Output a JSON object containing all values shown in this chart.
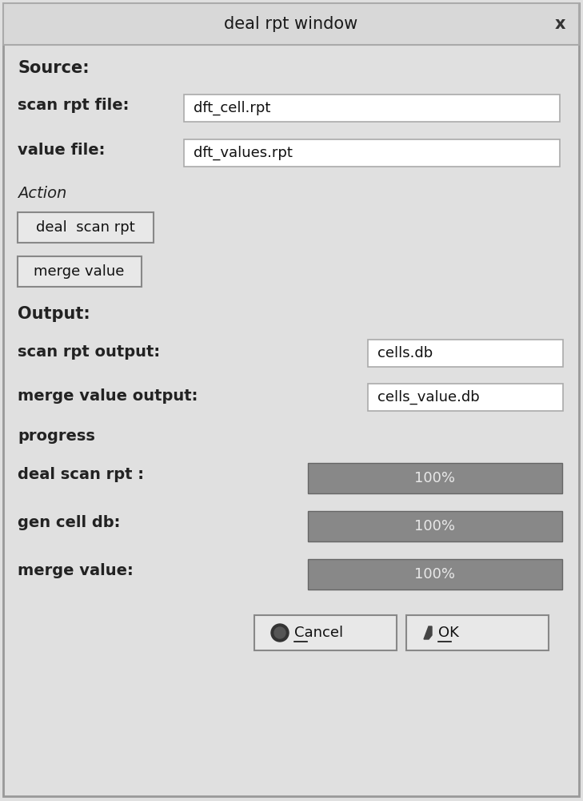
{
  "title_text": "deal rpt window",
  "close_x": "x",
  "bg_color": "#e0e0e0",
  "header_bg": "#d8d8d8",
  "source_label": "Source:",
  "scan_rpt_label": "scan rpt file:",
  "scan_rpt_value": "dft_cell.rpt",
  "value_file_label": "value file:",
  "value_file_value": "dft_values.rpt",
  "action_label": "Action",
  "btn1_label": "deal  scan rpt",
  "btn2_label": "merge value",
  "output_label": "Output:",
  "scan_rpt_out_label": "scan rpt output:",
  "scan_rpt_out_value": "cells.db",
  "merge_val_out_label": "merge value output:",
  "merge_val_out_value": "cells_value.db",
  "progress_label": "progress",
  "prog1_label": "deal scan rpt :",
  "prog1_value": "100%",
  "prog2_label": "gen cell db:",
  "prog2_value": "100%",
  "prog3_label": "merge value:",
  "prog3_value": "100%",
  "progressbar_color": "#888888",
  "progressbar_text_color": "#e8e8e8",
  "input_bg": "#ffffff",
  "text_color": "#1a1a1a",
  "label_color": "#222222",
  "border_color": "#aaaaaa",
  "btn_bg": "#e8e8e8",
  "btn_border": "#888888"
}
